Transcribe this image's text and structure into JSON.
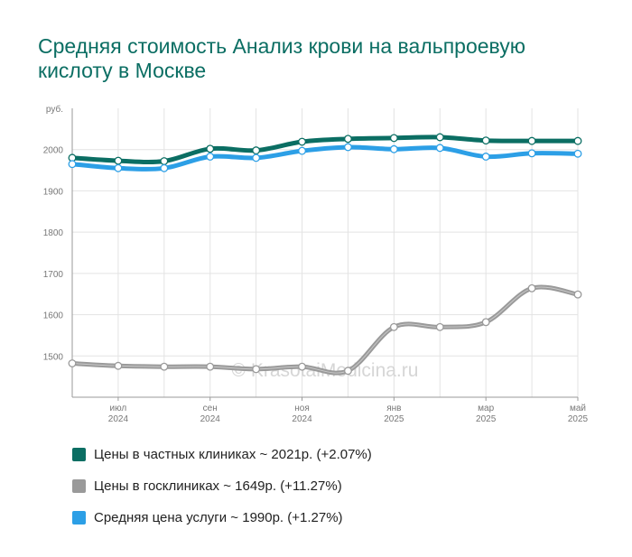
{
  "title": "Средняя стоимость Анализ крови на вальпроевую кислоту в Москве",
  "watermark": "© KrasotaiMedicina.ru",
  "chart_data": {
    "type": "line",
    "y_unit": "руб.",
    "ylim": [
      1400,
      2100
    ],
    "yticks": [
      1500,
      1600,
      1700,
      1800,
      1900,
      2000
    ],
    "grid": true,
    "legend_position": "bottom",
    "x": [
      "2024-06",
      "2024-07",
      "2024-08",
      "2024-09",
      "2024-10",
      "2024-11",
      "2024-12",
      "2025-01",
      "2025-02",
      "2025-03",
      "2025-04",
      "2025-05"
    ],
    "xtick_labels": [
      {
        "month": "июл",
        "year": "2024"
      },
      {
        "month": "сен",
        "year": "2024"
      },
      {
        "month": "ноя",
        "year": "2024"
      },
      {
        "month": "янв",
        "year": "2025"
      },
      {
        "month": "мар",
        "year": "2025"
      },
      {
        "month": "май",
        "year": "2025"
      }
    ],
    "xtick_positions": [
      1,
      3,
      5,
      7,
      9,
      11
    ],
    "series": [
      {
        "name": "Цены в частных клиниках ~ 2021р. (+2.07%)",
        "color": "#0b6e63",
        "values": [
          1980,
          1973,
          1972,
          2002,
          1998,
          2019,
          2026,
          2028,
          2030,
          2022,
          2021,
          2021
        ]
      },
      {
        "name": "Цены в госклиниках ~ 1649р. (+11.27%)",
        "color": "#9a9a9a",
        "values": [
          1482,
          1476,
          1474,
          1474,
          1468,
          1474,
          1464,
          1570,
          1570,
          1582,
          1664,
          1649
        ]
      },
      {
        "name": "Средняя цена услуги ~ 1990р. (+1.27%)",
        "color": "#2c9fe6",
        "values": [
          1965,
          1955,
          1955,
          1983,
          1980,
          1997,
          2006,
          2001,
          2004,
          1983,
          1991,
          1990
        ]
      }
    ]
  }
}
